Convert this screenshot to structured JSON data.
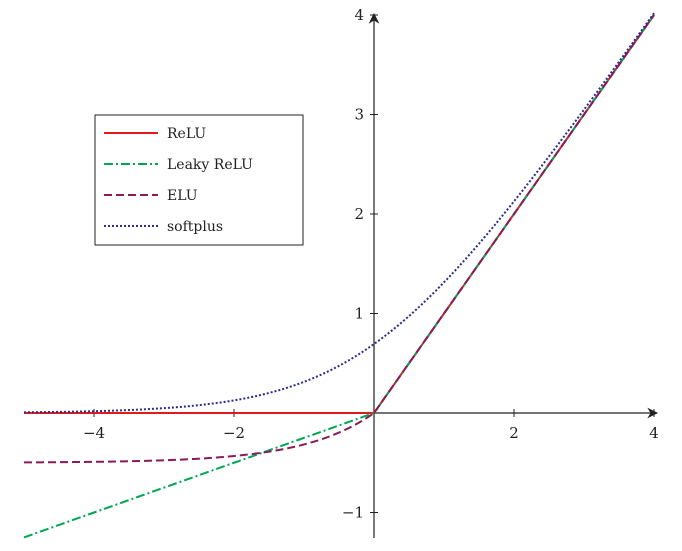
{
  "chart_data": {
    "type": "line",
    "title": "",
    "xlabel": "",
    "ylabel": "",
    "xlim": [
      -5,
      4
    ],
    "ylim": [
      -1.25,
      4
    ],
    "x_ticks": [
      -4,
      -2,
      2,
      4
    ],
    "x_tick_labels": [
      "−4",
      "−2",
      "2",
      "4"
    ],
    "y_ticks": [
      -1,
      1,
      2,
      3,
      4
    ],
    "y_tick_labels": [
      "−1",
      "1",
      "2",
      "3",
      "4"
    ],
    "grid": false,
    "legend_position": "upper-left",
    "series": [
      {
        "name": "ReLU",
        "function": "max(0, x)",
        "color": "#e31a1c",
        "dash": "solid"
      },
      {
        "name": "Leaky ReLU",
        "function": "x if x > 0 else 0.25x",
        "color": "#00a651",
        "dash": "dash-dot"
      },
      {
        "name": "ELU",
        "function": "x if x > 0 else 0.5(e^x − 1)",
        "color": "#8b1a5b",
        "dash": "dashed"
      },
      {
        "name": "softplus",
        "function": "ln(1 + e^x)",
        "color": "#2b2e8c",
        "dash": "dotted"
      }
    ]
  }
}
